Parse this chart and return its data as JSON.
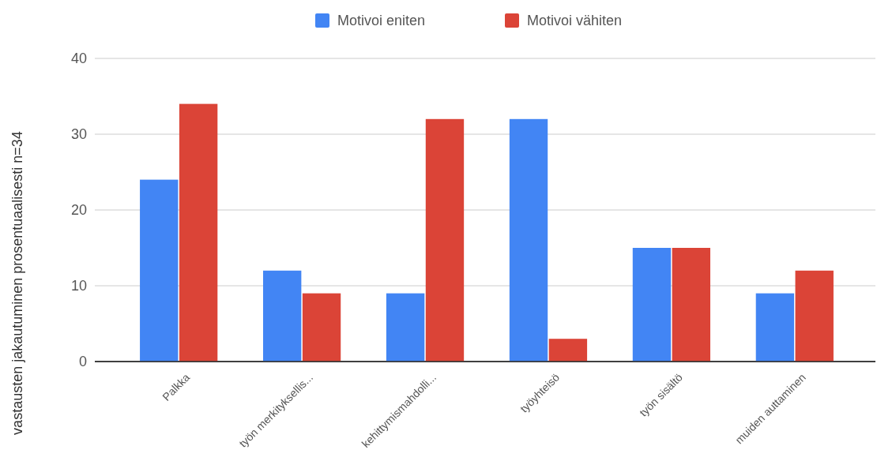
{
  "chart_data": {
    "type": "bar",
    "ylabel": "vastausten jakautuminen prosentuaalisesti   n=34",
    "categories": [
      "Palkka",
      "työn merkityksellis...",
      "kehittymismahdolli...",
      "työyhteisö",
      "työn sisältö",
      "muiden auttaminen"
    ],
    "series": [
      {
        "name": "Motivoi eniten",
        "color": "#4285f4",
        "values": [
          24,
          12,
          9,
          32,
          15,
          9
        ]
      },
      {
        "name": "Motivoi vähiten",
        "color": "#db4437",
        "values": [
          34,
          9,
          32,
          3,
          15,
          12
        ]
      }
    ],
    "ylim": [
      0,
      40
    ],
    "yticks": [
      0,
      10,
      20,
      30,
      40
    ],
    "grid": "y",
    "legend": "top"
  }
}
